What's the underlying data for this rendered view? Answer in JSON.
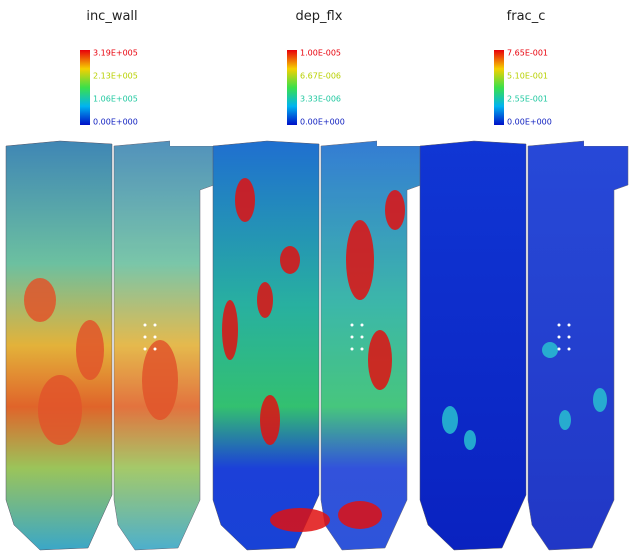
{
  "panels": [
    {
      "title": "inc_wall",
      "colorbar": {
        "labels": [
          "3.19E+005",
          "2.13E+005",
          "1.06E+005",
          "0.00E+000"
        ]
      }
    },
    {
      "title": "dep_flx",
      "colorbar": {
        "labels": [
          "1.00E-005",
          "6.67E-006",
          "3.33E-006",
          "0.00E+000"
        ]
      }
    },
    {
      "title": "frac_c",
      "colorbar": {
        "labels": [
          "7.65E-001",
          "5.10E-001",
          "2.55E-001",
          "0.00E+000"
        ]
      }
    }
  ]
}
